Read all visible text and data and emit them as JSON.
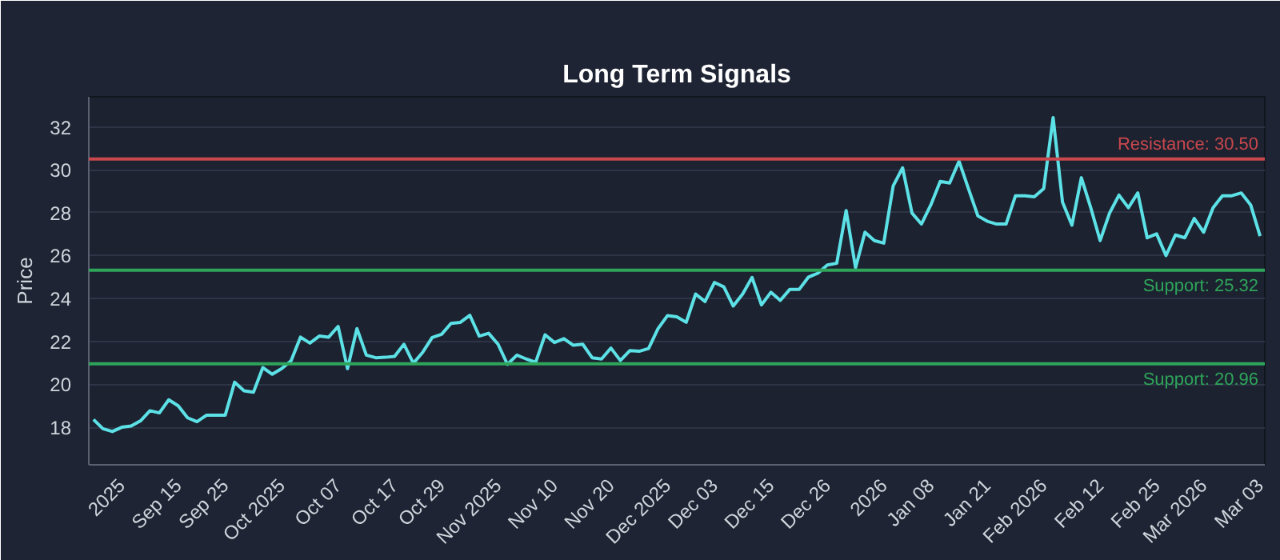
{
  "chart_data": {
    "type": "line",
    "title": "Long Term Signals",
    "ylabel": "Price",
    "categories": [
      null,
      null,
      null,
      "2025",
      null,
      null,
      null,
      null,
      null,
      "Sep 15",
      null,
      null,
      null,
      null,
      "Sep 25",
      null,
      null,
      null,
      null,
      null,
      "Oct 2025",
      null,
      null,
      null,
      null,
      null,
      "Oct 07",
      null,
      null,
      null,
      null,
      null,
      "Oct 17",
      null,
      null,
      null,
      null,
      "Oct 29",
      null,
      null,
      null,
      null,
      null,
      "Nov 2025",
      null,
      null,
      null,
      null,
      null,
      "Nov 10",
      null,
      null,
      null,
      null,
      null,
      "Nov 20",
      null,
      null,
      null,
      null,
      null,
      "Dec 2025",
      null,
      null,
      null,
      null,
      "Dec 03",
      null,
      null,
      null,
      null,
      null,
      "Dec 15",
      null,
      null,
      null,
      null,
      null,
      "Dec 26",
      null,
      null,
      null,
      null,
      null,
      "2026",
      null,
      null,
      null,
      null,
      "Jan 08",
      null,
      null,
      null,
      null,
      null,
      "Jan 21",
      null,
      null,
      null,
      null,
      null,
      "Feb 2026",
      null,
      null,
      null,
      null,
      null,
      "Feb 12",
      null,
      null,
      null,
      null,
      null,
      "Feb 25",
      null,
      null,
      null,
      null,
      "Mar 2026",
      null,
      null,
      null,
      null,
      null,
      "Mar 03"
    ],
    "series": [
      {
        "color": "#5ce1e6",
        "values": [
          18.36,
          17.93,
          17.8,
          18.0,
          18.06,
          18.3,
          18.77,
          18.67,
          19.28,
          19.0,
          18.44,
          18.26,
          18.56,
          18.56,
          18.56,
          20.1,
          19.7,
          19.63,
          20.78,
          20.47,
          20.73,
          21.1,
          22.2,
          21.92,
          22.25,
          22.2,
          22.7,
          20.73,
          22.6,
          21.36,
          21.24,
          21.26,
          21.3,
          21.87,
          20.98,
          21.5,
          22.18,
          22.33,
          22.84,
          22.89,
          23.22,
          22.25,
          22.38,
          21.87,
          20.93,
          21.36,
          21.18,
          21.03,
          22.31,
          21.95,
          22.13,
          21.82,
          21.87,
          21.24,
          21.18,
          21.69,
          21.11,
          21.57,
          21.54,
          21.67,
          22.59,
          23.2,
          23.15,
          22.89,
          24.21,
          23.86,
          24.75,
          24.54,
          23.65,
          24.21,
          24.98,
          23.7,
          24.29,
          23.91,
          24.42,
          24.42,
          25.0,
          25.18,
          25.56,
          25.64,
          28.1,
          25.43,
          27.09,
          26.7,
          26.58,
          29.25,
          30.09,
          27.98,
          27.47,
          28.36,
          29.46,
          29.38,
          30.4,
          29.12,
          27.85,
          27.6,
          27.47,
          27.47,
          28.79,
          28.79,
          28.74,
          29.12,
          32.43,
          28.49,
          27.42,
          29.63,
          28.23,
          26.7,
          27.98,
          28.82,
          28.23,
          28.92,
          26.83,
          27.01,
          26.0,
          26.96,
          26.83,
          27.73,
          27.09,
          28.23,
          28.79,
          28.79,
          28.92,
          28.36,
          26.91
        ]
      }
    ],
    "ylim": [
      16.25,
      33.4
    ],
    "yticks": [
      18,
      20,
      22,
      24,
      26,
      28,
      30,
      32
    ],
    "ref_lines": [
      {
        "axis": "y",
        "value": 30.5,
        "label": "Resistance: 30.50",
        "color": "#c9474d"
      },
      {
        "axis": "y",
        "value": 25.32,
        "label": "Support: 25.32",
        "color": "#2ea55a"
      },
      {
        "axis": "y",
        "value": 20.96,
        "label": "Support: 20.96",
        "color": "#2ea55a"
      }
    ],
    "grid": "y",
    "marker": "none",
    "line_style": "solid"
  }
}
